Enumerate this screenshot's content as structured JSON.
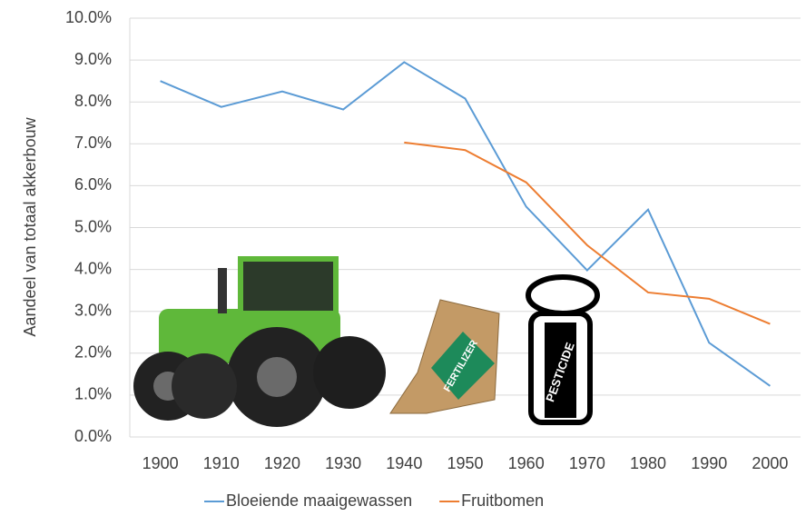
{
  "chart_data": {
    "type": "line",
    "y_label": "Aandeel van totaal akkerbouw",
    "categories": [
      "1900",
      "1910",
      "1920",
      "1930",
      "1940",
      "1950",
      "1960",
      "1970",
      "1980",
      "1990",
      "2000"
    ],
    "series": [
      {
        "name": "Bloeiende maaigewassen",
        "color": "#5b9bd5",
        "values": [
          8.5,
          7.88,
          8.25,
          7.82,
          8.95,
          8.08,
          5.5,
          3.98,
          5.43,
          2.25,
          1.22
        ]
      },
      {
        "name": "Fruitbomen",
        "color": "#ed7d31",
        "values": [
          null,
          null,
          null,
          null,
          7.03,
          6.85,
          6.08,
          4.58,
          3.45,
          3.3,
          2.7
        ]
      }
    ],
    "ylim": [
      0,
      10
    ],
    "yticks": [
      {
        "value": 0,
        "label": "0.0%"
      },
      {
        "value": 1,
        "label": "1.0%"
      },
      {
        "value": 2,
        "label": "2.0%"
      },
      {
        "value": 3,
        "label": "3.0%"
      },
      {
        "value": 4,
        "label": "4.0%"
      },
      {
        "value": 5,
        "label": "5.0%"
      },
      {
        "value": 6,
        "label": "6.0%"
      },
      {
        "value": 7,
        "label": "7.0%"
      },
      {
        "value": 8,
        "label": "8.0%"
      },
      {
        "value": 9,
        "label": "9.0%"
      },
      {
        "value": 10,
        "label": "10.0%"
      }
    ],
    "grid": true,
    "legend": "bottom",
    "annotations": [
      "FERTILIZER",
      "PESTICIDE"
    ]
  }
}
